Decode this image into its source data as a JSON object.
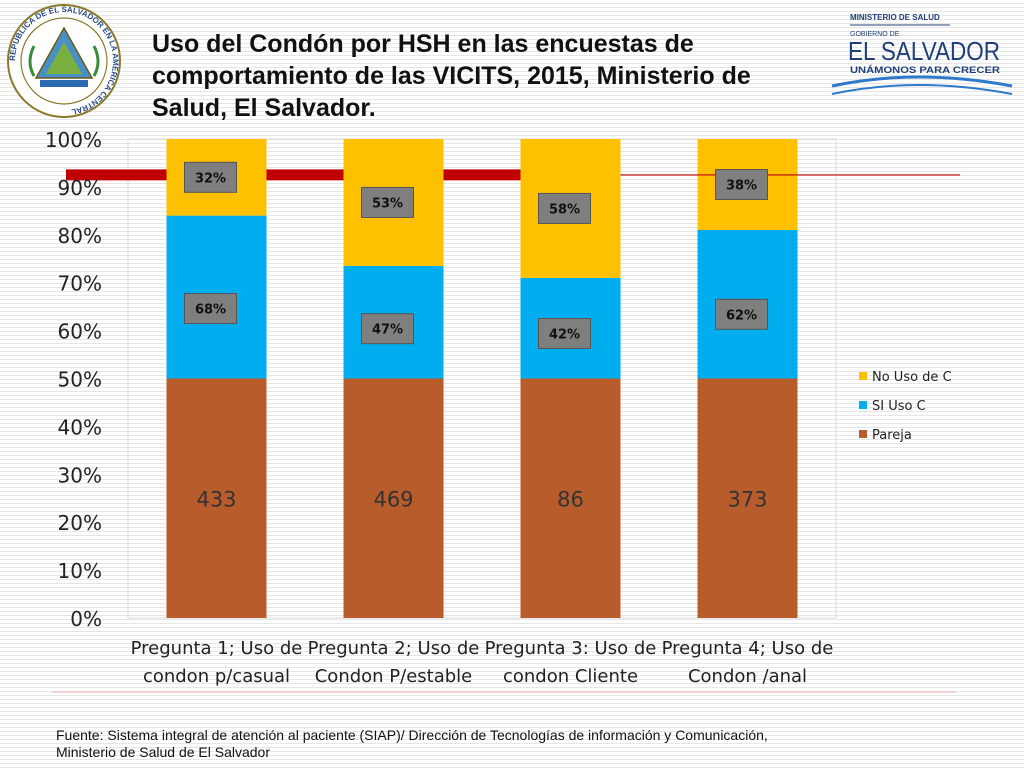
{
  "header": {
    "title": "Uso del Condón por HSH en las encuestas de comportamiento de las VICITS, 2015, Ministerio de Salud, El Salvador.",
    "seal_text": "REPUBLICA DE EL SALVADOR EN LA AMERICA CENTRAL",
    "logo_ministry": "MINISTERIO DE SALUD",
    "logo_gobierno": "GOBIERNO DE",
    "logo_country": "EL SALVADOR",
    "logo_slogan": "UNÁMONOS PARA CRECER"
  },
  "colors": {
    "pareja": "#b85c2b",
    "si_uso": "#00aeef",
    "no_uso": "#ffc000",
    "target_line": "#c00000",
    "badge": "#7f7f7f"
  },
  "chart_data": {
    "type": "bar",
    "stacked": true,
    "title": "",
    "xlabel": "",
    "ylabel": "",
    "ylim": [
      0,
      100
    ],
    "y_ticks": [
      "0%",
      "10%",
      "20%",
      "30%",
      "40%",
      "50%",
      "60%",
      "70%",
      "80%",
      "90%",
      "100%"
    ],
    "categories": [
      [
        "Pregunta 1; Uso de",
        "condon p/casual"
      ],
      [
        "Pregunta 2; Uso de",
        "Condon P/estable"
      ],
      [
        "Pregunta 3: Uso de",
        "condon Cliente"
      ],
      [
        "Pregunta 4; Uso de",
        "Condon /anal"
      ]
    ],
    "series": [
      {
        "name": "Pareja",
        "values": [
          50,
          50,
          50,
          50
        ],
        "labels": [
          "433",
          "469",
          "86",
          "373"
        ]
      },
      {
        "name": "SI Uso C",
        "values": [
          34,
          23.5,
          21,
          31
        ],
        "labels": [
          "68%",
          "47%",
          "42%",
          "62%"
        ]
      },
      {
        "name": "No Uso de C",
        "values": [
          16,
          26.5,
          29,
          19
        ],
        "labels": [
          "32%",
          "53%",
          "58%",
          "38%"
        ]
      }
    ],
    "reference_line": {
      "value": 92.5
    },
    "legend": {
      "position": "right",
      "order": [
        "No Uso de C",
        "SI Uso C",
        "Pareja"
      ]
    }
  },
  "footer": {
    "source_line1": "Fuente: Sistema integral de atención al paciente (SIAP)/ Dirección de Tecnologías de información y Comunicación,",
    "source_line2": "Ministerio de Salud de El Salvador"
  }
}
